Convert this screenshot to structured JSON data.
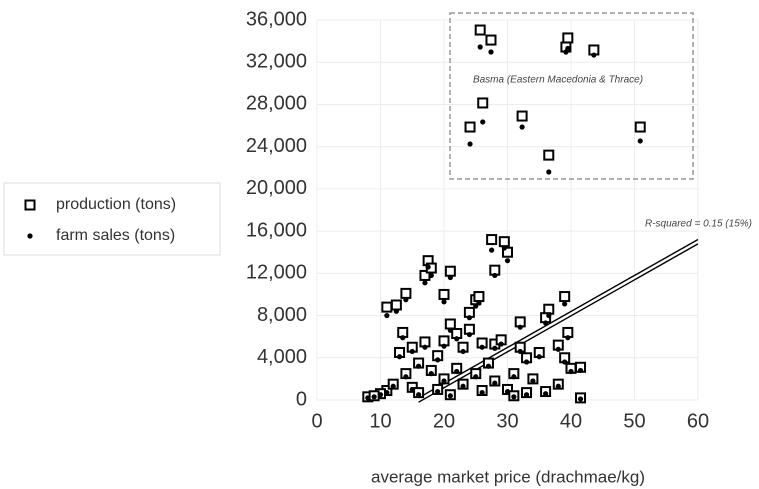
{
  "chart_data": {
    "type": "scatter",
    "x_label": "average market price (drachmae/kg)",
    "annotations": [
      "Basma (Eastern Macedonia & Thrace)",
      "R-squared = 0.15 (15%)"
    ],
    "xlim": [
      0,
      60
    ],
    "xticks": [
      0,
      10,
      20,
      30,
      40,
      50,
      60
    ],
    "ylim": [
      0,
      36000
    ],
    "yticks": [
      0,
      {
        "value": 4000,
        "label": "4,000"
      },
      {
        "value": 8000,
        "label": "8,000"
      },
      {
        "value": 12000,
        "label": "12,000"
      },
      {
        "value": 16000,
        "label": "16,000"
      },
      {
        "value": 20000,
        "label": "20,000"
      },
      {
        "value": 24000,
        "label": "24,000"
      },
      {
        "value": 28000,
        "label": "28,000"
      },
      {
        "value": 32000,
        "label": "32,000"
      },
      {
        "value": 36000,
        "label": "36,000"
      }
    ],
    "grid": true,
    "legend": "left",
    "trendline": {
      "x": [
        16,
        60
      ],
      "y": [
        0,
        15000
      ],
      "color": "#000000"
    },
    "series": [
      {
        "name": "production (tons)",
        "marker": "square",
        "color": "#000000",
        "x": [
          25.7,
          27.4,
          24.1,
          26.1,
          32.3,
          36.5,
          39.2,
          39.5,
          43.6,
          50.9,
          11,
          12.5,
          14,
          17,
          17.5,
          18,
          20,
          21,
          24,
          25,
          25.5,
          27.5,
          28,
          29.5,
          30,
          32,
          36.5,
          36,
          39,
          39.5,
          38,
          39,
          40,
          41.5,
          41.5,
          11,
          8,
          13.5,
          13,
          15,
          16,
          17,
          19,
          20,
          21,
          22,
          23,
          24,
          26,
          28,
          29,
          31,
          32,
          33,
          35,
          34,
          12,
          14,
          15,
          18,
          19,
          20,
          22,
          23,
          25,
          27,
          28,
          30,
          33,
          36,
          38,
          10,
          9,
          16,
          21,
          26,
          31
        ],
        "values": [
          35050,
          34100,
          25860,
          28140,
          26900,
          23200,
          33440,
          34300,
          33160,
          25860,
          8800,
          9000,
          10100,
          11800,
          13200,
          12500,
          10000,
          12200,
          8300,
          9500,
          9800,
          15200,
          12300,
          15000,
          14000,
          7400,
          8600,
          7800,
          9800,
          6400,
          5200,
          4000,
          3000,
          3100,
          200,
          900,
          300,
          6400,
          4500,
          5000,
          3500,
          5500,
          4200,
          5600,
          7200,
          6300,
          5000,
          6700,
          5400,
          5300,
          5700,
          2500,
          5000,
          4000,
          4500,
          2000,
          1500,
          2500,
          1200,
          2800,
          1000,
          2000,
          3000,
          1500,
          2500,
          3500,
          1800,
          1000,
          700,
          800,
          1500,
          600,
          400,
          700,
          500,
          900,
          400
        ]
      },
      {
        "name": "farm sales (tons)",
        "marker": "dot",
        "color": "#000000",
        "x": [
          25.7,
          27.4,
          24.1,
          26.1,
          32.3,
          36.5,
          39.2,
          39.5,
          43.6,
          50.9,
          11,
          12.5,
          14,
          17,
          17.5,
          18,
          20,
          21,
          24,
          25,
          25.5,
          27.5,
          28,
          29.5,
          30,
          32,
          36.5,
          36,
          39,
          39.5,
          38,
          39,
          40,
          41.5,
          41.5,
          11,
          8,
          13.5,
          13,
          15,
          16,
          17,
          19,
          20,
          21,
          22,
          23,
          24,
          26,
          28,
          29,
          31,
          32,
          33,
          35,
          34,
          12,
          14,
          15,
          18,
          19,
          20,
          22,
          23,
          25,
          27,
          28,
          30,
          33,
          36,
          38,
          10,
          9,
          16,
          21,
          26,
          31
        ],
        "values": [
          33440,
          32970,
          24250,
          26340,
          25860,
          21600,
          32970,
          33300,
          32680,
          24540,
          8000,
          8400,
          9500,
          11100,
          12600,
          11800,
          9300,
          11600,
          7800,
          8900,
          9200,
          14200,
          11800,
          14400,
          13200,
          6900,
          8000,
          7300,
          9100,
          5900,
          4800,
          3600,
          2700,
          2800,
          100,
          700,
          200,
          5900,
          4100,
          4600,
          3200,
          5000,
          3800,
          5100,
          6600,
          5800,
          4600,
          6200,
          5000,
          4900,
          5300,
          2200,
          4600,
          3600,
          4100,
          1800,
          1300,
          2200,
          1000,
          2500,
          800,
          1800,
          2700,
          1300,
          2200,
          3200,
          1600,
          800,
          500,
          600,
          1300,
          500,
          300,
          500,
          400,
          700,
          300
        ]
      }
    ]
  }
}
